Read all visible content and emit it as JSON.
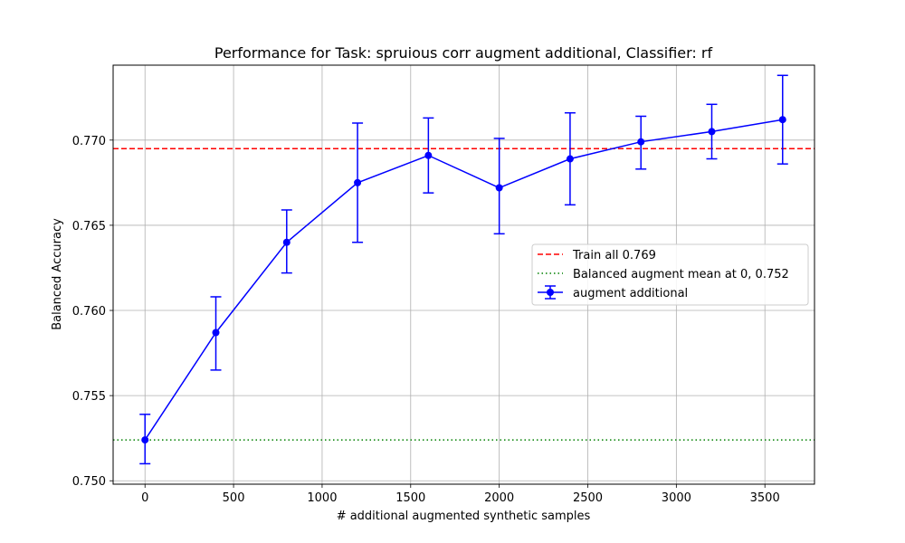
{
  "chart_data": {
    "type": "line",
    "title": "Performance for Task: spruious corr augment additional, Classifier: rf",
    "xlabel": "# additional augmented synthetic samples",
    "ylabel": "Balanced Accuracy",
    "xlim": [
      -180,
      3780
    ],
    "ylim": [
      0.7498,
      0.7744
    ],
    "xticks": [
      0,
      500,
      1000,
      1500,
      2000,
      2500,
      3000,
      3500
    ],
    "xtick_labels": [
      "0",
      "500",
      "1000",
      "1500",
      "2000",
      "2500",
      "3000",
      "3500"
    ],
    "yticks": [
      0.75,
      0.755,
      0.76,
      0.765,
      0.77
    ],
    "ytick_labels": [
      "0.750",
      "0.755",
      "0.760",
      "0.765",
      "0.770"
    ],
    "grid": true,
    "legend_position": "center-right",
    "series": [
      {
        "name": "augment additional",
        "color": "#0000ff",
        "marker": "circle",
        "x": [
          0,
          400,
          800,
          1200,
          1600,
          2000,
          2400,
          2800,
          3200,
          3600
        ],
        "y": [
          0.7524,
          0.7587,
          0.764,
          0.7675,
          0.7691,
          0.7672,
          0.7689,
          0.7699,
          0.7705,
          0.7712
        ],
        "yerr_low": [
          0.751,
          0.7565,
          0.7622,
          0.764,
          0.7669,
          0.7645,
          0.7662,
          0.7683,
          0.7689,
          0.7686
        ],
        "yerr_high": [
          0.7539,
          0.7608,
          0.7659,
          0.771,
          0.7713,
          0.7701,
          0.7716,
          0.7714,
          0.7721,
          0.7738
        ]
      }
    ],
    "reference_lines": [
      {
        "name": "Train all  0.769",
        "y": 0.7695,
        "color": "#ff0000",
        "style": "dashed"
      },
      {
        "name": "Balanced augment mean at 0, 0.752",
        "y": 0.7524,
        "color": "#008000",
        "style": "dotted"
      }
    ]
  }
}
